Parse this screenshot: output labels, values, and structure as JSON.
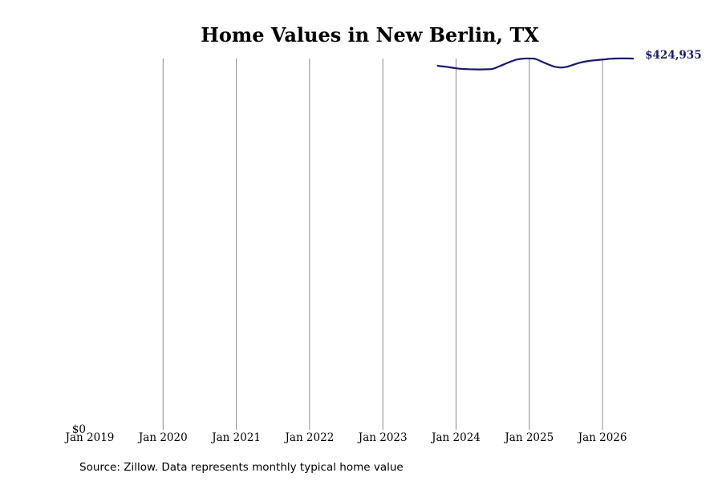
{
  "chart_data": {
    "type": "line",
    "title": "Home Values in New Berlin, TX",
    "xlabel": "",
    "ylabel": "",
    "x_ticks": [
      "Jan 2019",
      "Jan 2020",
      "Jan 2021",
      "Jan 2022",
      "Jan 2023",
      "Jan 2024",
      "Jan 2025",
      "Jan 2026"
    ],
    "y_ticks": [
      "$0"
    ],
    "ylim": [
      0,
      425000
    ],
    "grid": "vertical",
    "series": [
      {
        "color": "#191970",
        "end_label": "$424,935",
        "points": [
          {
            "date": "2023-10",
            "value": 416700
          },
          {
            "date": "2023-11",
            "value": 415800
          },
          {
            "date": "2023-12",
            "value": 414900
          },
          {
            "date": "2024-01",
            "value": 413800
          },
          {
            "date": "2024-02",
            "value": 413100
          },
          {
            "date": "2024-03",
            "value": 412800
          },
          {
            "date": "2024-04",
            "value": 412600
          },
          {
            "date": "2024-05",
            "value": 412500
          },
          {
            "date": "2024-06",
            "value": 412700
          },
          {
            "date": "2024-07",
            "value": 413200
          },
          {
            "date": "2024-08",
            "value": 415800
          },
          {
            "date": "2024-09",
            "value": 418800
          },
          {
            "date": "2024-10",
            "value": 421600
          },
          {
            "date": "2024-11",
            "value": 423900
          },
          {
            "date": "2024-12",
            "value": 424900
          },
          {
            "date": "2025-01",
            "value": 425000
          },
          {
            "date": "2025-02",
            "value": 424500
          },
          {
            "date": "2025-03",
            "value": 421600
          },
          {
            "date": "2025-04",
            "value": 418600
          },
          {
            "date": "2025-05",
            "value": 415900
          },
          {
            "date": "2025-06",
            "value": 414700
          },
          {
            "date": "2025-07",
            "value": 415300
          },
          {
            "date": "2025-08",
            "value": 417400
          },
          {
            "date": "2025-09",
            "value": 419700
          },
          {
            "date": "2025-10",
            "value": 421300
          },
          {
            "date": "2025-11",
            "value": 422400
          },
          {
            "date": "2025-12",
            "value": 423200
          },
          {
            "date": "2026-01",
            "value": 423800
          },
          {
            "date": "2026-02",
            "value": 424500
          },
          {
            "date": "2026-03",
            "value": 425000
          },
          {
            "date": "2026-04",
            "value": 425100
          },
          {
            "date": "2026-05",
            "value": 425100
          },
          {
            "date": "2026-06",
            "value": 424935
          }
        ]
      }
    ]
  },
  "footer": {
    "source": "Source: Zillow. Data represents monthly typical home value"
  }
}
